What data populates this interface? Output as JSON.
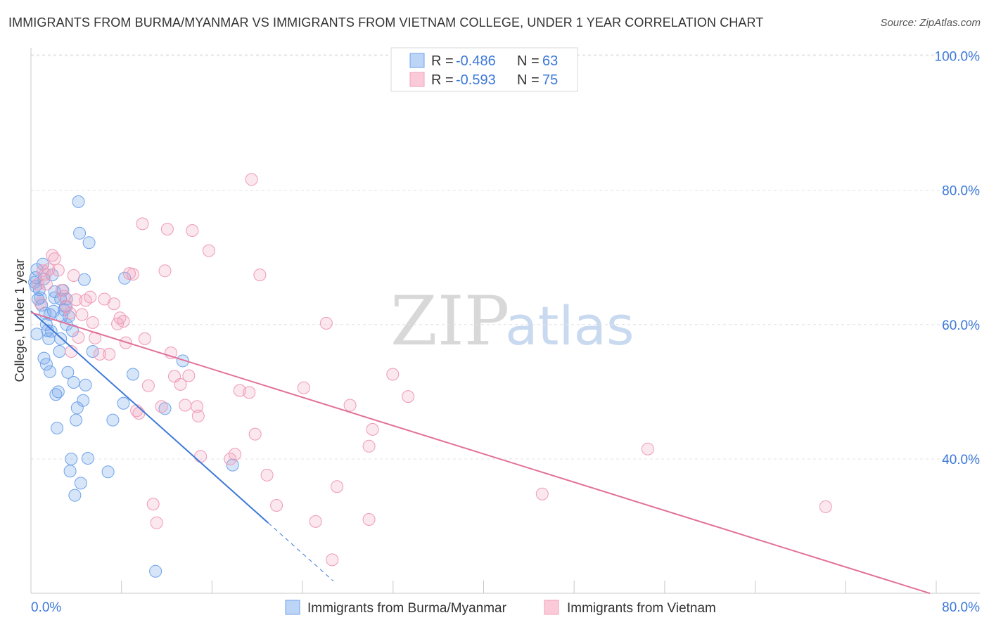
{
  "title": "IMMIGRANTS FROM BURMA/MYANMAR VS IMMIGRANTS FROM VIETNAM COLLEGE, UNDER 1 YEAR CORRELATION CHART",
  "source": "Source: ZipAtlas.com",
  "watermark": {
    "zip": "ZIP",
    "atlas": "atlas"
  },
  "stats": [
    {
      "r_label": "R =",
      "r_value": "-0.486",
      "n_label": "N =",
      "n_value": "63",
      "color": "#6fa3ea"
    },
    {
      "r_label": "R =",
      "r_value": "-0.593",
      "n_label": "N =",
      "n_value": "75",
      "color": "#f0a0bb"
    }
  ],
  "chart_data": {
    "type": "scatter",
    "title": "IMMIGRANTS FROM BURMA/MYANMAR VS IMMIGRANTS FROM VIETNAM COLLEGE, UNDER 1 YEAR CORRELATION CHART",
    "xlabel": "",
    "ylabel": "College, Under 1 year",
    "xlim": [
      0,
      80
    ],
    "ylim": [
      20,
      103
    ],
    "x_tick_labels": [
      "0.0%",
      "80.0%"
    ],
    "y_ticks": [
      40,
      60,
      80,
      100
    ],
    "y_tick_labels": [
      "40.0%",
      "60.0%",
      "80.0%",
      "100.0%"
    ],
    "grid": true,
    "legend": "bottom-center",
    "series": [
      {
        "name": "Immigrants from Burma/Myanmar",
        "color": "#6fa3ea",
        "trend": {
          "x0": 0,
          "y0": 62.0,
          "x1": 20.0,
          "y1": 30.5,
          "dash_to_x": 25.5
        },
        "points": [
          [
            0.3,
            66.3
          ],
          [
            0.4,
            65.7
          ],
          [
            0.5,
            68.2
          ],
          [
            0.6,
            63.8
          ],
          [
            0.7,
            65.2
          ],
          [
            0.5,
            58.6
          ],
          [
            0.9,
            62.9
          ],
          [
            1.1,
            66.8
          ],
          [
            1.2,
            61.7
          ],
          [
            1.3,
            54.1
          ],
          [
            1.4,
            59.1
          ],
          [
            1.5,
            57.9
          ],
          [
            1.6,
            53.0
          ],
          [
            1.7,
            59.0
          ],
          [
            1.9,
            62.0
          ],
          [
            2.0,
            64.9
          ],
          [
            2.1,
            49.6
          ],
          [
            2.3,
            50.0
          ],
          [
            2.4,
            56.0
          ],
          [
            2.5,
            63.8
          ],
          [
            2.6,
            61.2
          ],
          [
            2.7,
            65.1
          ],
          [
            2.8,
            62.2
          ],
          [
            3.0,
            63.8
          ],
          [
            3.1,
            52.9
          ],
          [
            3.2,
            61.2
          ],
          [
            3.5,
            59.1
          ],
          [
            3.6,
            51.4
          ],
          [
            3.8,
            45.8
          ],
          [
            3.9,
            47.6
          ],
          [
            4.0,
            78.3
          ],
          [
            4.1,
            73.6
          ],
          [
            4.4,
            48.7
          ],
          [
            4.5,
            66.7
          ],
          [
            4.8,
            40.1
          ],
          [
            4.9,
            72.2
          ],
          [
            5.2,
            56.0
          ],
          [
            6.5,
            38.1
          ],
          [
            6.9,
            45.8
          ],
          [
            7.8,
            48.3
          ],
          [
            7.9,
            66.9
          ],
          [
            8.6,
            52.6
          ],
          [
            11.3,
            47.5
          ],
          [
            12.8,
            54.6
          ],
          [
            17.0,
            39.1
          ],
          [
            1.0,
            69.0
          ],
          [
            1.8,
            67.4
          ],
          [
            2.2,
            44.6
          ],
          [
            2.9,
            62.7
          ],
          [
            3.3,
            38.2
          ],
          [
            3.4,
            40.0
          ],
          [
            3.7,
            34.6
          ],
          [
            4.2,
            36.4
          ],
          [
            4.6,
            51.0
          ],
          [
            1.3,
            60.0
          ],
          [
            0.8,
            64.0
          ],
          [
            2.5,
            57.9
          ],
          [
            1.6,
            61.5
          ],
          [
            10.5,
            23.3
          ],
          [
            0.4,
            67.0
          ],
          [
            2.0,
            64.0
          ],
          [
            3.0,
            60.0
          ],
          [
            1.1,
            55.0
          ]
        ]
      },
      {
        "name": "Immigrants from Vietnam",
        "color": "#f0a0bb",
        "trend": {
          "x0": 0,
          "y0": 61.8,
          "x1": 75.8,
          "y1": 20.0
        },
        "points": [
          [
            0.6,
            66.0
          ],
          [
            0.8,
            63.2
          ],
          [
            1.0,
            68.0
          ],
          [
            1.2,
            67.5
          ],
          [
            1.5,
            68.2
          ],
          [
            1.8,
            70.3
          ],
          [
            2.0,
            69.8
          ],
          [
            2.3,
            68.1
          ],
          [
            2.6,
            65.1
          ],
          [
            3.0,
            62.7
          ],
          [
            3.3,
            61.7
          ],
          [
            3.6,
            67.3
          ],
          [
            3.8,
            63.7
          ],
          [
            4.0,
            58.1
          ],
          [
            4.3,
            61.5
          ],
          [
            4.6,
            63.6
          ],
          [
            5.0,
            64.1
          ],
          [
            5.4,
            58.0
          ],
          [
            5.8,
            55.6
          ],
          [
            6.2,
            63.8
          ],
          [
            6.6,
            55.6
          ],
          [
            7.0,
            63.1
          ],
          [
            7.3,
            60.1
          ],
          [
            7.5,
            61.0
          ],
          [
            7.8,
            60.5
          ],
          [
            8.0,
            57.3
          ],
          [
            8.3,
            67.6
          ],
          [
            8.6,
            67.5
          ],
          [
            8.9,
            47.2
          ],
          [
            9.1,
            46.8
          ],
          [
            9.4,
            75.0
          ],
          [
            9.9,
            50.9
          ],
          [
            10.3,
            33.3
          ],
          [
            10.6,
            30.5
          ],
          [
            11.0,
            47.8
          ],
          [
            11.3,
            68.0
          ],
          [
            11.5,
            74.2
          ],
          [
            11.8,
            55.8
          ],
          [
            12.1,
            52.3
          ],
          [
            12.6,
            51.1
          ],
          [
            13.3,
            52.4
          ],
          [
            13.6,
            74.0
          ],
          [
            14.0,
            47.8
          ],
          [
            14.1,
            46.4
          ],
          [
            14.3,
            40.4
          ],
          [
            15.0,
            71.0
          ],
          [
            16.8,
            40.0
          ],
          [
            17.2,
            40.7
          ],
          [
            17.6,
            50.2
          ],
          [
            18.4,
            49.9
          ],
          [
            18.6,
            81.6
          ],
          [
            18.9,
            43.7
          ],
          [
            19.3,
            67.4
          ],
          [
            19.9,
            37.6
          ],
          [
            20.7,
            33.1
          ],
          [
            23.0,
            50.6
          ],
          [
            24.0,
            30.7
          ],
          [
            24.9,
            60.2
          ],
          [
            25.4,
            25.0
          ],
          [
            25.8,
            35.9
          ],
          [
            26.9,
            48.0
          ],
          [
            28.5,
            31.0
          ],
          [
            28.5,
            41.9
          ],
          [
            28.8,
            44.4
          ],
          [
            30.5,
            52.6
          ],
          [
            31.8,
            49.3
          ],
          [
            43.1,
            34.8
          ],
          [
            52.0,
            41.5
          ],
          [
            67.0,
            32.9
          ],
          [
            1.3,
            66.0
          ],
          [
            2.8,
            64.2
          ],
          [
            5.2,
            60.3
          ],
          [
            9.6,
            57.9
          ],
          [
            3.4,
            56.0
          ],
          [
            13.0,
            48.0
          ]
        ]
      }
    ]
  }
}
